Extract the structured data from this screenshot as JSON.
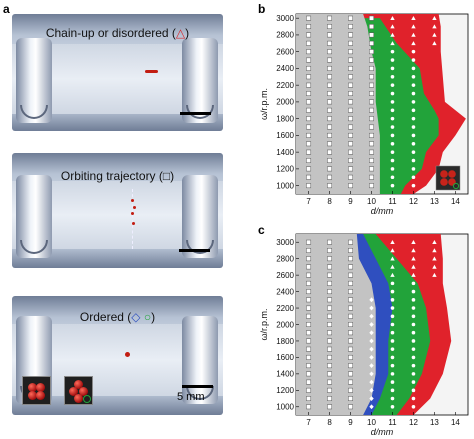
{
  "panels": {
    "a": {
      "letter": "a",
      "sub": [
        {
          "caption": "Chain-up or disordered (",
          "symbol": "△",
          "symbol_color": "#d9262b",
          "close": ")"
        },
        {
          "caption": "Orbiting trajectory (",
          "symbol": "□",
          "symbol_color": "#222222",
          "close": ")"
        },
        {
          "caption": "Ordered (",
          "symbol": "◇",
          "symbol_color": "#2d4fbf",
          "symbol2": "○",
          "symbol2_color": "#22a33a",
          "close": ")"
        }
      ],
      "scale_label": "5 mm"
    },
    "b": {
      "letter": "b"
    },
    "c": {
      "letter": "c"
    }
  },
  "colors": {
    "gray": "#c3c3c3",
    "green": "#22a33a",
    "red": "#e0222b",
    "blue": "#2f4fbf",
    "bg": "#f4f4f4"
  },
  "chart_data": [
    {
      "type": "heatmap",
      "panel": "b",
      "xlabel": "d/mm",
      "ylabel": "ω/r.p.m.",
      "xticks": [
        7,
        8,
        9,
        10,
        11,
        12,
        13,
        14
      ],
      "yticks": [
        1000,
        1200,
        1400,
        1600,
        1800,
        2000,
        2200,
        2400,
        2600,
        2800,
        3000
      ],
      "xlim": [
        6.4,
        14.6
      ],
      "ylim": [
        900,
        3050
      ],
      "regions": [
        {
          "color": "gray",
          "boundary_right": [
            [
              3050,
              9.6
            ],
            [
              2900,
              9.8
            ],
            [
              2600,
              10.0
            ],
            [
              2400,
              10.2
            ],
            [
              2000,
              10.2
            ],
            [
              1600,
              10.4
            ],
            [
              1200,
              10.4
            ],
            [
              900,
              10.4
            ]
          ]
        },
        {
          "color": "green",
          "boundary_right": [
            [
              3000,
              10.4
            ],
            [
              2700,
              11.2
            ],
            [
              2400,
              12.3
            ],
            [
              2100,
              12.5
            ],
            [
              1900,
              13.0
            ],
            [
              1800,
              13.2
            ],
            [
              1600,
              13.2
            ],
            [
              1400,
              12.6
            ],
            [
              1200,
              12.4
            ],
            [
              1000,
              11.6
            ],
            [
              900,
              11.4
            ]
          ]
        },
        {
          "color": "red",
          "boundary_right": [
            [
              3050,
              13.2
            ],
            [
              2900,
              13.3
            ],
            [
              2600,
              13.3
            ],
            [
              2300,
              13.4
            ],
            [
              2000,
              13.5
            ],
            [
              1800,
              14.5
            ],
            [
              1600,
              14.0
            ],
            [
              1400,
              13.4
            ],
            [
              1200,
              13.2
            ],
            [
              1000,
              12.6
            ],
            [
              900,
              12.0
            ]
          ]
        }
      ],
      "markers": [
        {
          "symbol": "square",
          "d": [
            7,
            8,
            9,
            10
          ],
          "omega_range": [
            1000,
            3000
          ]
        },
        {
          "symbol": "circle",
          "d": [
            11,
            12
          ],
          "omega_range": [
            1000,
            2600
          ]
        },
        {
          "symbol": "triangle",
          "d": [
            11,
            12,
            13
          ],
          "omega_range": [
            2700,
            3000
          ]
        }
      ]
    },
    {
      "type": "heatmap",
      "panel": "c",
      "xlabel": "d/mm",
      "ylabel": "ω/r.p.m.",
      "xticks": [
        7,
        8,
        9,
        10,
        11,
        12,
        13,
        14
      ],
      "yticks": [
        1000,
        1200,
        1400,
        1600,
        1800,
        2000,
        2200,
        2400,
        2600,
        2800,
        3000
      ],
      "xlim": [
        6.4,
        14.6
      ],
      "ylim": [
        900,
        3100
      ],
      "regions": [
        {
          "color": "gray",
          "boundary_right": [
            [
              3100,
              9.3
            ],
            [
              2800,
              9.4
            ],
            [
              2500,
              10.0
            ],
            [
              2200,
              10.2
            ],
            [
              1800,
              10.2
            ],
            [
              1400,
              10.2
            ],
            [
              1100,
              10.0
            ],
            [
              900,
              9.6
            ]
          ]
        },
        {
          "color": "blue",
          "boundary_right": [
            [
              3100,
              9.6
            ],
            [
              2800,
              10.2
            ],
            [
              2500,
              10.8
            ],
            [
              2200,
              11.0
            ],
            [
              1800,
              10.8
            ],
            [
              1400,
              10.8
            ],
            [
              1100,
              10.4
            ],
            [
              900,
              10.0
            ]
          ]
        },
        {
          "color": "green",
          "boundary_right": [
            [
              3100,
              10.2
            ],
            [
              2800,
              11.2
            ],
            [
              2500,
              12.2
            ],
            [
              2200,
              12.6
            ],
            [
              1800,
              12.8
            ],
            [
              1400,
              12.4
            ],
            [
              1100,
              11.8
            ],
            [
              900,
              11.2
            ]
          ]
        },
        {
          "color": "red",
          "boundary_right": [
            [
              3100,
              13.3
            ],
            [
              2800,
              13.4
            ],
            [
              2500,
              13.4
            ],
            [
              2200,
              13.6
            ],
            [
              1800,
              13.8
            ],
            [
              1400,
              13.4
            ],
            [
              1100,
              12.8
            ],
            [
              900,
              12.0
            ]
          ]
        }
      ],
      "markers": [
        {
          "symbol": "square",
          "d": [
            7,
            8,
            9
          ],
          "omega_range": [
            1000,
            3000
          ]
        },
        {
          "symbol": "diamond",
          "d": [
            10
          ],
          "omega_range": [
            1000,
            2300
          ]
        },
        {
          "symbol": "circle",
          "d": [
            11,
            12
          ],
          "omega_range": [
            1000,
            2500
          ]
        },
        {
          "symbol": "triangle",
          "d": [
            11,
            12,
            13
          ],
          "omega_range": [
            2600,
            3000
          ]
        }
      ]
    }
  ]
}
